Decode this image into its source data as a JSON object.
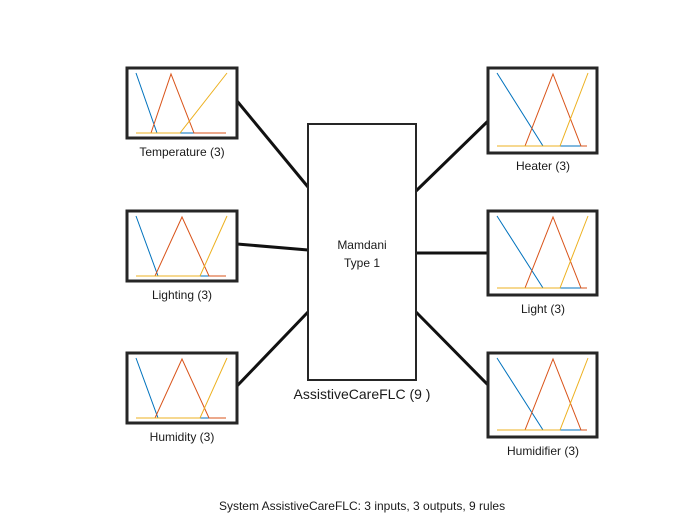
{
  "system": {
    "engine_line1": "Mamdani",
    "engine_line2": "Type 1",
    "name_label": "AssistiveCareFLC (9 )",
    "summary": "System AssistiveCareFLC: 3 inputs, 3 outputs, 9 rules"
  },
  "inputs": [
    {
      "label": "Temperature (3)"
    },
    {
      "label": "Lighting (3)"
    },
    {
      "label": "Humidity (3)"
    }
  ],
  "outputs": [
    {
      "label": "Heater (3)"
    },
    {
      "label": "Light (3)"
    },
    {
      "label": "Humidifier (3)"
    }
  ],
  "colors": {
    "mf1": "#0072BD",
    "mf2": "#D95319",
    "mf3": "#EDB120",
    "border": "#262626"
  }
}
